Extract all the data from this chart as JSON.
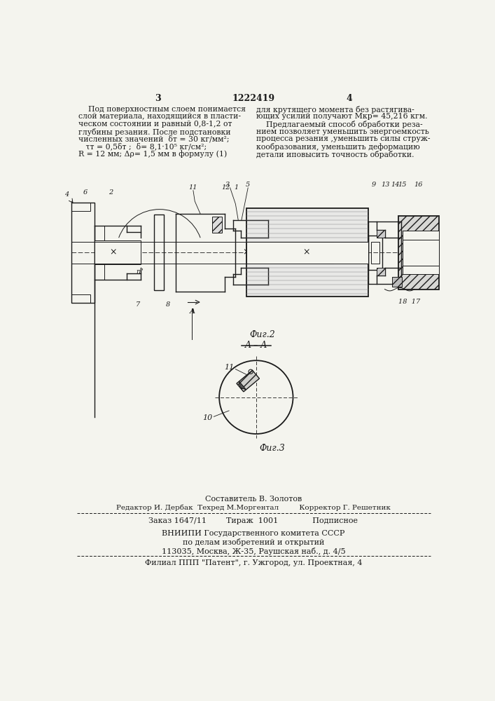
{
  "page_number_left": "3",
  "page_number_center": "1222419",
  "page_number_right": "4",
  "text_left_col": [
    "    Под поверхностным слоем понимается",
    "слой материала, находящийся в пласти-",
    "ческом состоянии и равный 0,8-1,2 от",
    "глубины резания. После подстановки",
    "численных значений  δт = 30 кг/мм²;",
    "   τт = 0,5δт ;  δ= 8,1·10⁵ кг/см²;",
    "R = 12 мм; Δρ= 1,5 мм в формулу (1)"
  ],
  "text_right_col": [
    "для крутящего момента без растягива-",
    "ющих усилий получают Мкр= 45,216 кгм.",
    "    Предлагаемый способ обработки реза-",
    "нием позволяет уменьшить энергоемкость",
    "процесса резания ,уменьшить силы струж-",
    "кообразования, уменьшить деформацию",
    "детали иповысить точность обработки."
  ],
  "footer_line1": "Составитель В. Золотов",
  "footer_line2": "Редактор И. Дербак  Техред М.Моргентал         Корректор Г. Решетник",
  "footer_line3": "Заказ 1647/11        Тираж  1001              Подписное",
  "footer_line4": "ВНИИПИ Государственного комитета СССР",
  "footer_line5": "по делам изобретений и открытий",
  "footer_line6": "113035, Москва, Ж-35, Раушская наб., д. 4/5",
  "footer_line7": "Филиал ППП \"Патент\", г. Ужгород, ул. Проектная, 4",
  "bg_color": "#f4f4ee",
  "line_color": "#1a1a1a",
  "text_color": "#1a1a1a"
}
